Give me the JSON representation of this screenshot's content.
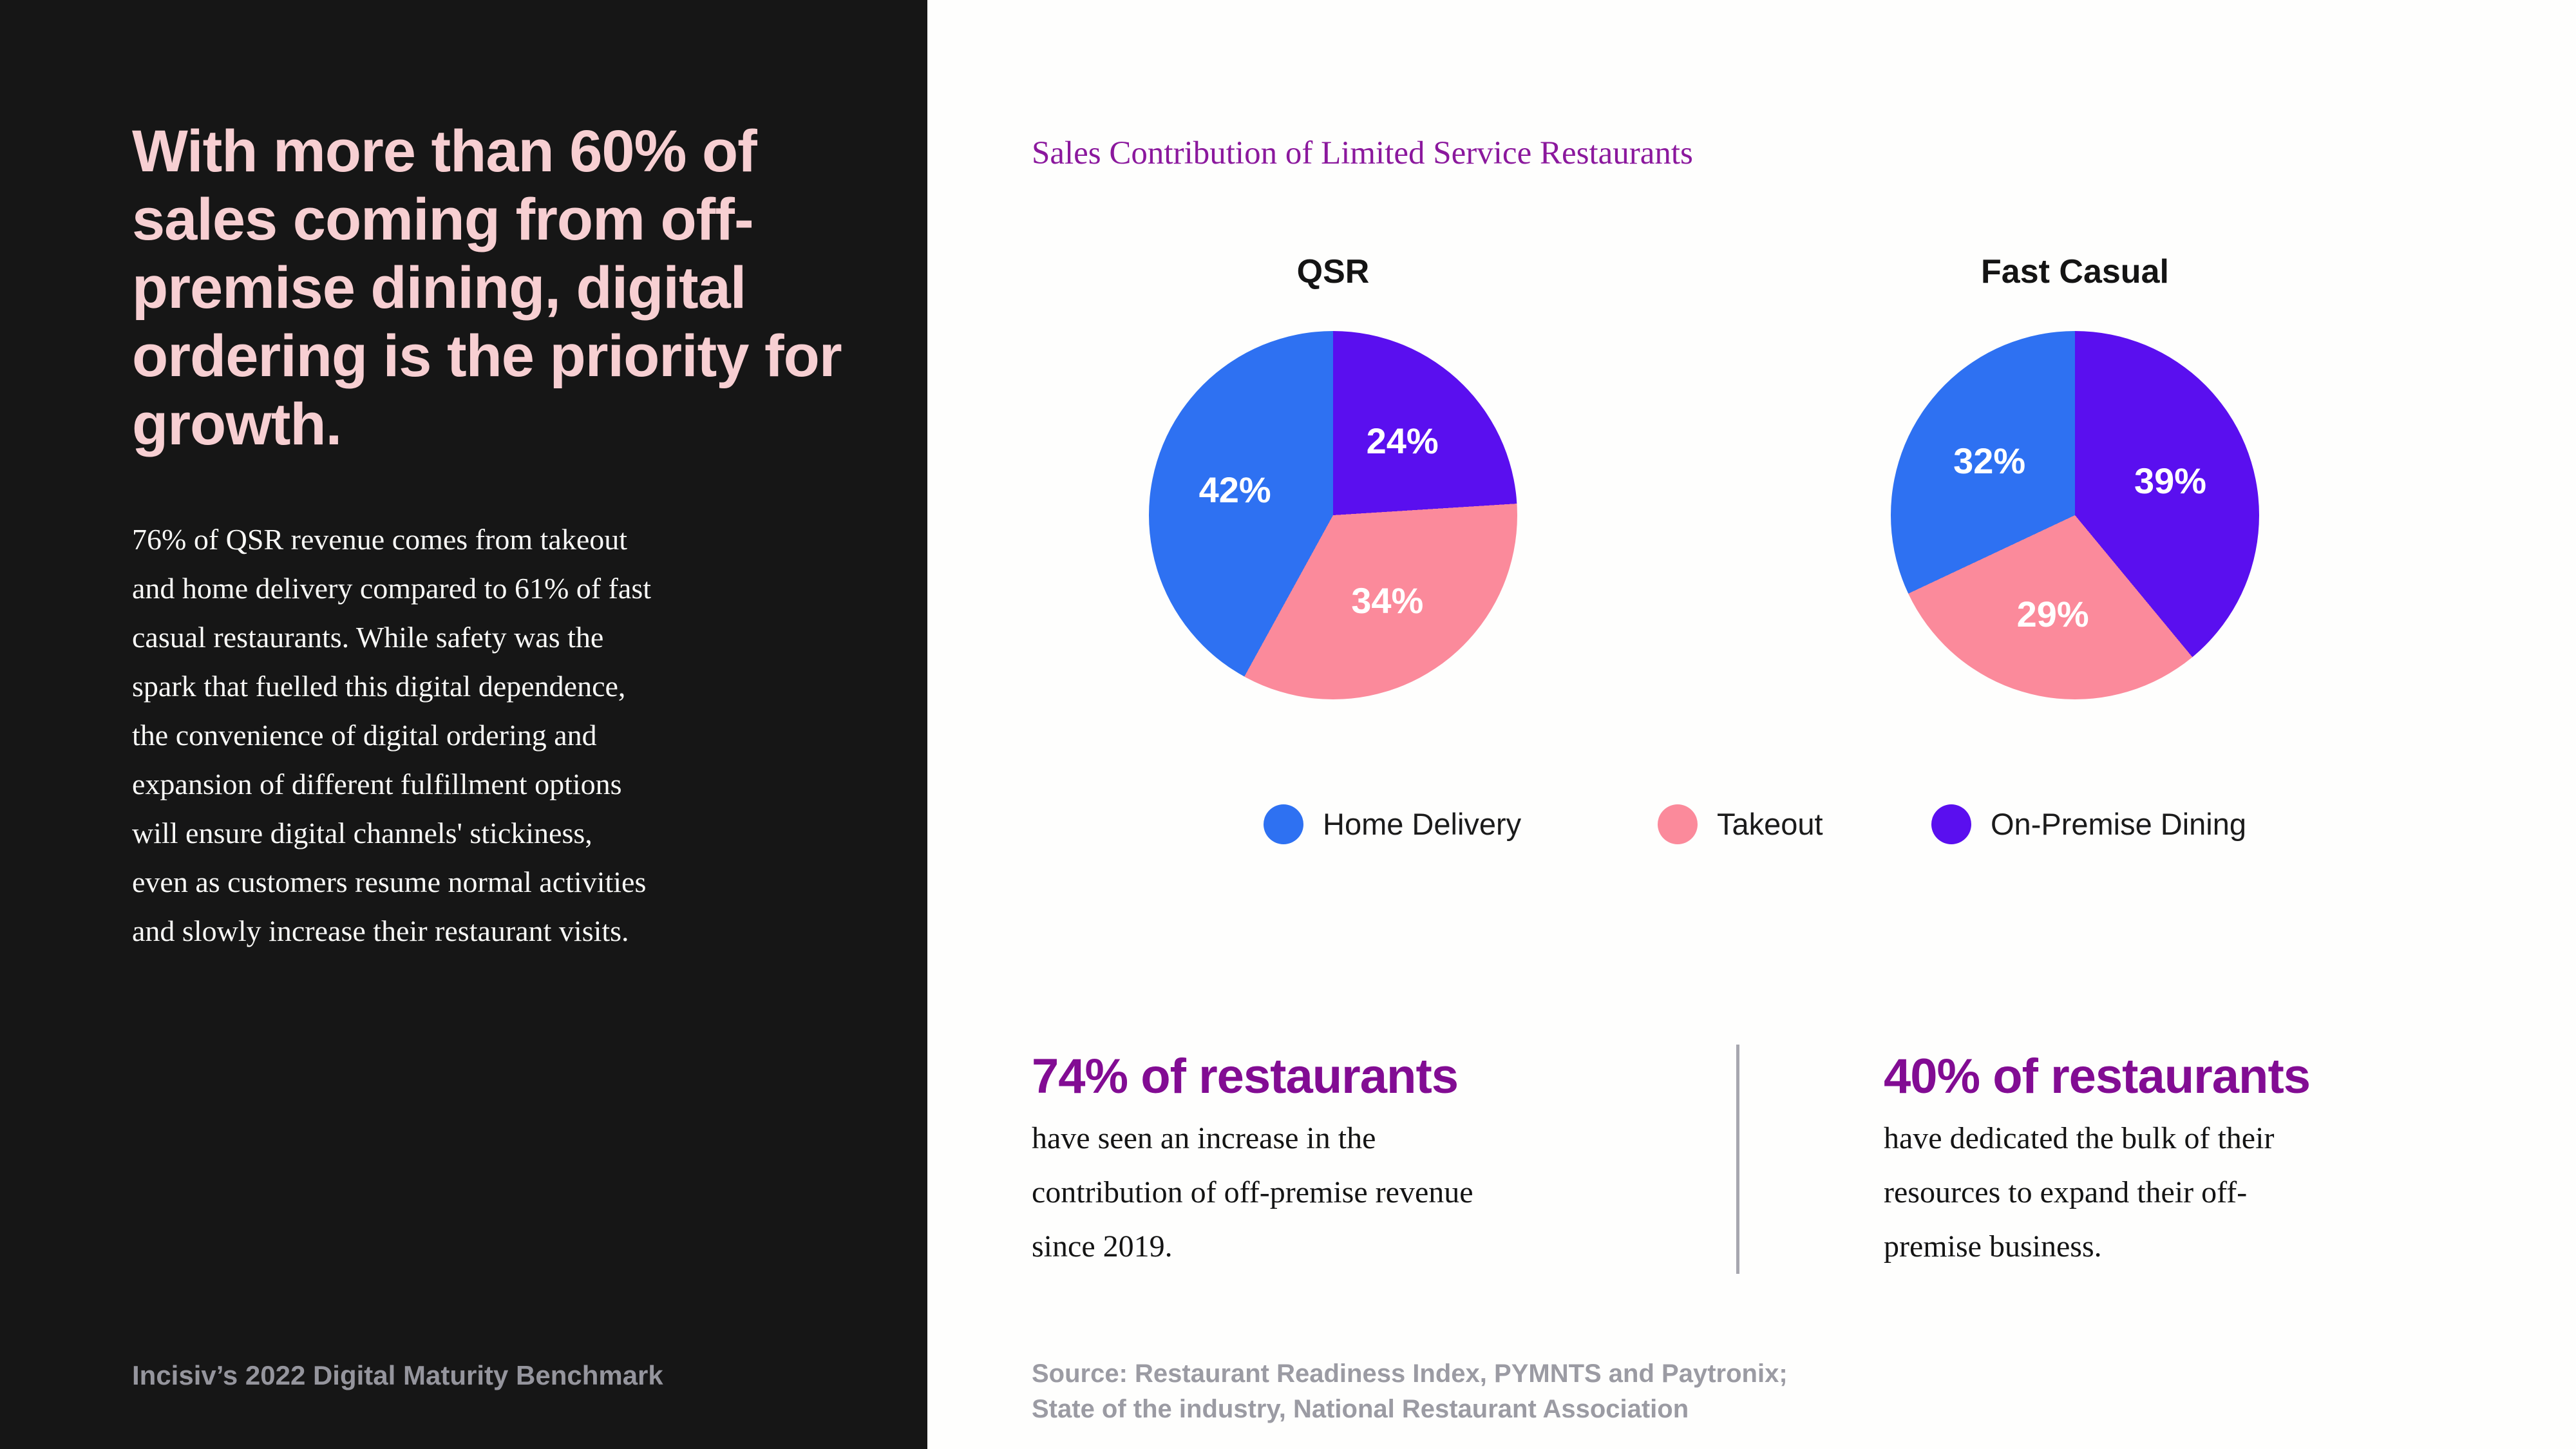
{
  "sidebar": {
    "heading": "With more than 60% of\nsales coming from off-\npremise dining, digital\nordering is the priority for\ngrowth.",
    "body": "76% of QSR revenue comes from takeout\nand home delivery compared to 61% of fast\ncasual restaurants. While safety was the\nspark that fuelled this digital dependence,\nthe convenience of digital ordering and\nexpansion of different fulfillment options\nwill ensure digital channels' stickiness,\neven as customers resume normal activities\nand slowly increase their restaurant visits.",
    "footer": "Incisiv’s 2022 Digital Maturity Benchmark"
  },
  "main": {
    "title": "Sales Contribution of Limited Service Restaurants",
    "stats": [
      {
        "headline": "74% of restaurants",
        "description": "have seen an increase in the\ncontribution of off-premise revenue\nsince 2019."
      },
      {
        "headline": "40% of restaurants",
        "description": "have dedicated the bulk of their\nresources to expand their off-\npremise business."
      }
    ],
    "source": "Source: Restaurant Readiness Index, PYMNTS and Paytronix;\nState of the industry, National Restaurant Association"
  },
  "chart_data": {
    "type": "pie",
    "title": "Sales Contribution of Limited Service Restaurants",
    "legend_position": "bottom",
    "legend": [
      "Home Delivery",
      "Takeout",
      "On-Premise Dining"
    ],
    "colors": {
      "Home Delivery": "#2E71F2",
      "Takeout": "#FB8A9B",
      "On-Premise Dining": "#5A0FEF"
    },
    "slice_label_color": "#FFFFFF",
    "charts": [
      {
        "label": "QSR",
        "slices": [
          {
            "name": "On-Premise Dining",
            "value": 24
          },
          {
            "name": "Takeout",
            "value": 34
          },
          {
            "name": "Home Delivery",
            "value": 42
          }
        ]
      },
      {
        "label": "Fast Casual",
        "slices": [
          {
            "name": "On-Premise Dining",
            "value": 39
          },
          {
            "name": "Takeout",
            "value": 29
          },
          {
            "name": "Home Delivery",
            "value": 32
          }
        ]
      }
    ]
  }
}
